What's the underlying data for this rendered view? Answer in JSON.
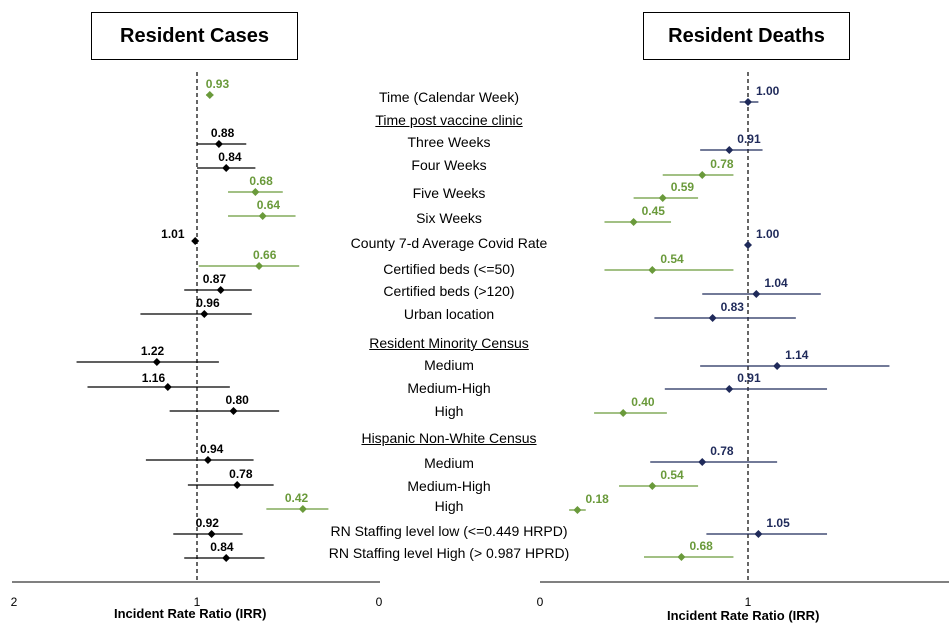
{
  "panels": {
    "cases_title": "Resident Cases",
    "deaths_title": "Resident Deaths",
    "cases_xlabel": "Incident Rate Ratio (IRR)",
    "deaths_xlabel": "Incident Rate Ratio (IRR)"
  },
  "row_labels": [
    {
      "text": "Time (Calendar Week)",
      "header": false
    },
    {
      "text": "Time post vaccine clinic",
      "header": true
    },
    {
      "text": "Three Weeks",
      "header": false
    },
    {
      "text": "Four Weeks",
      "header": false
    },
    {
      "text": "Five Weeks",
      "header": false
    },
    {
      "text": "Six Weeks",
      "header": false
    },
    {
      "text": "County 7-d Average Covid Rate",
      "header": false
    },
    {
      "text": "Certified beds (<=50)",
      "header": false
    },
    {
      "text": "Certified beds (>120)",
      "header": false
    },
    {
      "text": "Urban location",
      "header": false
    },
    {
      "text": "Resident Minority Census",
      "header": true
    },
    {
      "text": "Medium",
      "header": false
    },
    {
      "text": "Medium-High",
      "header": false
    },
    {
      "text": "High",
      "header": false
    },
    {
      "text": "Hispanic Non-White Census",
      "header": true
    },
    {
      "text": "Medium",
      "header": false
    },
    {
      "text": "Medium-High",
      "header": false
    },
    {
      "text": "High",
      "header": false
    },
    {
      "text": "RN Staffing level low (<=0.449 HRPD)",
      "header": false
    },
    {
      "text": "RN Staffing level High (> 0.987 HPRD)",
      "header": false
    }
  ],
  "colors": {
    "significant": "#6a9a3b",
    "cases_point": "#000000",
    "deaths_point": "#1f2a5a",
    "axis": "#000000"
  },
  "chart_data": [
    {
      "type": "scatter",
      "title": "Resident Cases",
      "xlabel": "Incident Rate Ratio (IRR)",
      "x_reversed": true,
      "xlim": [
        2,
        0
      ],
      "xticks": [
        "2",
        "1",
        "0"
      ],
      "reference_line": 1,
      "points": [
        {
          "label": "0.93",
          "value": 0.93,
          "ci": [
            0.91,
            0.95
          ],
          "significant": true
        },
        {
          "label": "0.88",
          "value": 0.88,
          "ci": [
            0.73,
            1.0
          ],
          "significant": false
        },
        {
          "label": "0.84",
          "value": 0.84,
          "ci": [
            0.68,
            1.0
          ],
          "significant": false
        },
        {
          "label": "0.68",
          "value": 0.68,
          "ci": [
            0.53,
            0.83
          ],
          "significant": true
        },
        {
          "label": "0.64",
          "value": 0.64,
          "ci": [
            0.46,
            0.83
          ],
          "significant": true
        },
        {
          "label": "1.01",
          "value": 1.01,
          "ci": [
            1.0,
            1.02
          ],
          "significant": false
        },
        {
          "label": "0.66",
          "value": 0.66,
          "ci": [
            0.44,
            0.99
          ],
          "significant": true
        },
        {
          "label": "0.87",
          "value": 0.87,
          "ci": [
            0.7,
            1.07
          ],
          "significant": false
        },
        {
          "label": "0.96",
          "value": 0.96,
          "ci": [
            0.7,
            1.31
          ],
          "significant": false
        },
        {
          "label": "1.22",
          "value": 1.22,
          "ci": [
            0.88,
            1.66
          ],
          "significant": false
        },
        {
          "label": "1.16",
          "value": 1.16,
          "ci": [
            0.82,
            1.6
          ],
          "significant": false
        },
        {
          "label": "0.80",
          "value": 0.8,
          "ci": [
            0.55,
            1.15
          ],
          "significant": false
        },
        {
          "label": "0.94",
          "value": 0.94,
          "ci": [
            0.69,
            1.28
          ],
          "significant": false
        },
        {
          "label": "0.78",
          "value": 0.78,
          "ci": [
            0.58,
            1.05
          ],
          "significant": false
        },
        {
          "label": "0.42",
          "value": 0.42,
          "ci": [
            0.28,
            0.62
          ],
          "significant": true
        },
        {
          "label": "0.92",
          "value": 0.92,
          "ci": [
            0.75,
            1.13
          ],
          "significant": false
        },
        {
          "label": "0.84",
          "value": 0.84,
          "ci": [
            0.63,
            1.07
          ],
          "significant": false
        }
      ]
    },
    {
      "type": "scatter",
      "title": "Resident Deaths",
      "xlabel": "Incident Rate Ratio (IRR)",
      "x_reversed": false,
      "xlim": [
        0,
        1.95
      ],
      "xticks": [
        "0",
        "1"
      ],
      "reference_line": 1,
      "points": [
        {
          "label": "1.00",
          "value": 1.0,
          "ci": [
            0.96,
            1.05
          ],
          "significant": false
        },
        {
          "label": "0.91",
          "value": 0.91,
          "ci": [
            0.77,
            1.07
          ],
          "significant": false
        },
        {
          "label": "0.78",
          "value": 0.78,
          "ci": [
            0.59,
            0.93
          ],
          "significant": true
        },
        {
          "label": "0.59",
          "value": 0.59,
          "ci": [
            0.45,
            0.76
          ],
          "significant": true
        },
        {
          "label": "0.45",
          "value": 0.45,
          "ci": [
            0.31,
            0.63
          ],
          "significant": true
        },
        {
          "label": "1.00",
          "value": 1.0,
          "ci": [
            1.0,
            1.0
          ],
          "significant": false
        },
        {
          "label": "0.54",
          "value": 0.54,
          "ci": [
            0.31,
            0.93
          ],
          "significant": true
        },
        {
          "label": "1.04",
          "value": 1.04,
          "ci": [
            0.78,
            1.35
          ],
          "significant": false
        },
        {
          "label": "0.83",
          "value": 0.83,
          "ci": [
            0.55,
            1.23
          ],
          "significant": false
        },
        {
          "label": "1.14",
          "value": 1.14,
          "ci": [
            0.77,
            1.68
          ],
          "significant": false
        },
        {
          "label": "0.91",
          "value": 0.91,
          "ci": [
            0.6,
            1.38
          ],
          "significant": false
        },
        {
          "label": "0.40",
          "value": 0.4,
          "ci": [
            0.26,
            0.61
          ],
          "significant": true
        },
        {
          "label": "0.78",
          "value": 0.78,
          "ci": [
            0.53,
            1.14
          ],
          "significant": false
        },
        {
          "label": "0.54",
          "value": 0.54,
          "ci": [
            0.38,
            0.76
          ],
          "significant": true
        },
        {
          "label": "0.18",
          "value": 0.18,
          "ci": [
            0.14,
            0.22
          ],
          "significant": true
        },
        {
          "label": "1.05",
          "value": 1.05,
          "ci": [
            0.8,
            1.38
          ],
          "significant": false
        },
        {
          "label": "0.68",
          "value": 0.68,
          "ci": [
            0.5,
            0.93
          ],
          "significant": true
        }
      ]
    }
  ]
}
